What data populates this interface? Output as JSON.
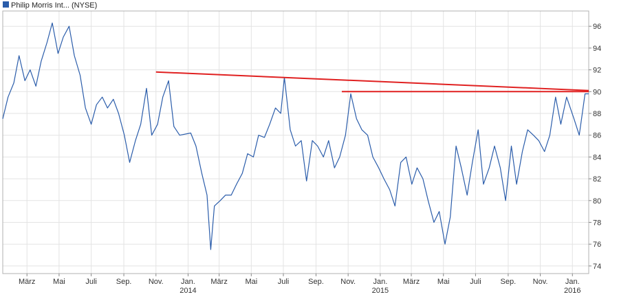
{
  "chart_data": {
    "type": "line",
    "legend": [
      {
        "name": "Philip Morris Int... (NYSE)",
        "color": "#2a5caa"
      }
    ],
    "x_ticks": [
      {
        "label": "März",
        "date": "2013-03-01"
      },
      {
        "label": "Mai",
        "date": "2013-05-01"
      },
      {
        "label": "Juli",
        "date": "2013-07-01"
      },
      {
        "label": "Sep.",
        "date": "2013-09-01"
      },
      {
        "label": "Nov.",
        "date": "2013-11-01"
      },
      {
        "label": "Jan.",
        "date": "2014-01-01"
      },
      {
        "label": "März",
        "date": "2014-03-01"
      },
      {
        "label": "Mai",
        "date": "2014-05-01"
      },
      {
        "label": "Juli",
        "date": "2014-07-01"
      },
      {
        "label": "Sep.",
        "date": "2014-09-01"
      },
      {
        "label": "Nov.",
        "date": "2014-11-01"
      },
      {
        "label": "Jan.",
        "date": "2015-01-01"
      },
      {
        "label": "März",
        "date": "2015-03-01"
      },
      {
        "label": "Mai",
        "date": "2015-05-01"
      },
      {
        "label": "Juli",
        "date": "2015-07-01"
      },
      {
        "label": "Sep.",
        "date": "2015-09-01"
      },
      {
        "label": "Nov.",
        "date": "2015-11-01"
      },
      {
        "label": "Jan.",
        "date": "2016-01-01"
      }
    ],
    "year_labels": [
      {
        "label": "2014",
        "date": "2014-01-01"
      },
      {
        "label": "2015",
        "date": "2015-01-01"
      },
      {
        "label": "2016",
        "date": "2016-01-01"
      }
    ],
    "x_range": [
      "2013-01-14",
      "2016-02-01"
    ],
    "y_ticks": [
      74,
      76,
      78,
      80,
      82,
      84,
      86,
      88,
      90,
      92,
      94,
      96
    ],
    "ylim": [
      73.3,
      97.4
    ],
    "grid": true,
    "legend_position": "top-left",
    "y_axis_side": "right",
    "series": [
      {
        "color": "#2a5caa",
        "points": [
          [
            "2013-01-14",
            87.5
          ],
          [
            "2013-01-24",
            89.5
          ],
          [
            "2013-02-04",
            90.8
          ],
          [
            "2013-02-14",
            93.3
          ],
          [
            "2013-02-25",
            91.0
          ],
          [
            "2013-03-07",
            92.0
          ],
          [
            "2013-03-18",
            90.5
          ],
          [
            "2013-03-28",
            92.8
          ],
          [
            "2013-04-08",
            94.5
          ],
          [
            "2013-04-18",
            96.3
          ],
          [
            "2013-04-29",
            93.5
          ],
          [
            "2013-05-09",
            95.0
          ],
          [
            "2013-05-20",
            96.0
          ],
          [
            "2013-05-30",
            93.3
          ],
          [
            "2013-06-10",
            91.5
          ],
          [
            "2013-06-20",
            88.5
          ],
          [
            "2013-07-01",
            87.0
          ],
          [
            "2013-07-11",
            88.8
          ],
          [
            "2013-07-22",
            89.5
          ],
          [
            "2013-08-01",
            88.5
          ],
          [
            "2013-08-12",
            89.3
          ],
          [
            "2013-08-22",
            88.0
          ],
          [
            "2013-09-02",
            86.0
          ],
          [
            "2013-09-12",
            83.5
          ],
          [
            "2013-09-23",
            85.5
          ],
          [
            "2013-10-03",
            87.0
          ],
          [
            "2013-10-14",
            90.3
          ],
          [
            "2013-10-24",
            86.0
          ],
          [
            "2013-11-04",
            87.0
          ],
          [
            "2013-11-14",
            89.5
          ],
          [
            "2013-11-25",
            91.0
          ],
          [
            "2013-12-05",
            86.8
          ],
          [
            "2013-12-16",
            86.0
          ],
          [
            "2014-01-06",
            86.2
          ],
          [
            "2014-01-16",
            85.0
          ],
          [
            "2014-01-27",
            82.5
          ],
          [
            "2014-02-06",
            80.5
          ],
          [
            "2014-02-13",
            75.5
          ],
          [
            "2014-02-20",
            79.5
          ],
          [
            "2014-03-03",
            80.0
          ],
          [
            "2014-03-13",
            80.5
          ],
          [
            "2014-03-24",
            80.5
          ],
          [
            "2014-04-03",
            81.5
          ],
          [
            "2014-04-14",
            82.5
          ],
          [
            "2014-04-24",
            84.3
          ],
          [
            "2014-05-05",
            84.0
          ],
          [
            "2014-05-15",
            86.0
          ],
          [
            "2014-05-26",
            85.8
          ],
          [
            "2014-06-05",
            87.0
          ],
          [
            "2014-06-16",
            88.5
          ],
          [
            "2014-06-26",
            88.0
          ],
          [
            "2014-07-03",
            91.3
          ],
          [
            "2014-07-14",
            86.5
          ],
          [
            "2014-07-24",
            85.0
          ],
          [
            "2014-08-04",
            85.5
          ],
          [
            "2014-08-14",
            81.8
          ],
          [
            "2014-08-25",
            85.5
          ],
          [
            "2014-09-04",
            85.0
          ],
          [
            "2014-09-15",
            84.0
          ],
          [
            "2014-09-25",
            85.5
          ],
          [
            "2014-10-06",
            83.0
          ],
          [
            "2014-10-16",
            84.0
          ],
          [
            "2014-10-27",
            86.0
          ],
          [
            "2014-11-06",
            89.8
          ],
          [
            "2014-11-17",
            87.5
          ],
          [
            "2014-11-27",
            86.5
          ],
          [
            "2014-12-08",
            86.0
          ],
          [
            "2014-12-18",
            84.0
          ],
          [
            "2014-12-29",
            83.0
          ],
          [
            "2015-01-08",
            82.0
          ],
          [
            "2015-01-19",
            81.0
          ],
          [
            "2015-01-29",
            79.5
          ],
          [
            "2015-02-09",
            83.5
          ],
          [
            "2015-02-19",
            84.0
          ],
          [
            "2015-03-02",
            81.5
          ],
          [
            "2015-03-12",
            83.0
          ],
          [
            "2015-03-23",
            82.0
          ],
          [
            "2015-04-02",
            80.0
          ],
          [
            "2015-04-13",
            78.0
          ],
          [
            "2015-04-23",
            79.0
          ],
          [
            "2015-05-04",
            76.0
          ],
          [
            "2015-05-14",
            78.5
          ],
          [
            "2015-05-25",
            85.0
          ],
          [
            "2015-06-04",
            83.0
          ],
          [
            "2015-06-15",
            80.5
          ],
          [
            "2015-06-25",
            83.5
          ],
          [
            "2015-07-06",
            86.5
          ],
          [
            "2015-07-16",
            81.5
          ],
          [
            "2015-07-27",
            83.0
          ],
          [
            "2015-08-06",
            85.0
          ],
          [
            "2015-08-17",
            83.0
          ],
          [
            "2015-08-27",
            80.0
          ],
          [
            "2015-09-07",
            85.0
          ],
          [
            "2015-09-17",
            81.5
          ],
          [
            "2015-09-28",
            84.5
          ],
          [
            "2015-10-08",
            86.5
          ],
          [
            "2015-10-19",
            86.0
          ],
          [
            "2015-10-29",
            85.5
          ],
          [
            "2015-11-09",
            84.5
          ],
          [
            "2015-11-19",
            86.0
          ],
          [
            "2015-11-30",
            89.5
          ],
          [
            "2015-12-10",
            87.0
          ],
          [
            "2015-12-21",
            89.5
          ],
          [
            "2016-01-04",
            87.5
          ],
          [
            "2016-01-14",
            86.0
          ],
          [
            "2016-01-25",
            89.8
          ],
          [
            "2016-02-01",
            89.8
          ]
        ]
      }
    ],
    "trendlines": [
      {
        "color": "#e02020",
        "from": [
          "2013-11-01",
          91.8
        ],
        "to": [
          "2016-02-01",
          90.1
        ]
      },
      {
        "color": "#e02020",
        "from": [
          "2014-10-20",
          90.0
        ],
        "to": [
          "2016-02-01",
          90.0
        ]
      }
    ]
  }
}
